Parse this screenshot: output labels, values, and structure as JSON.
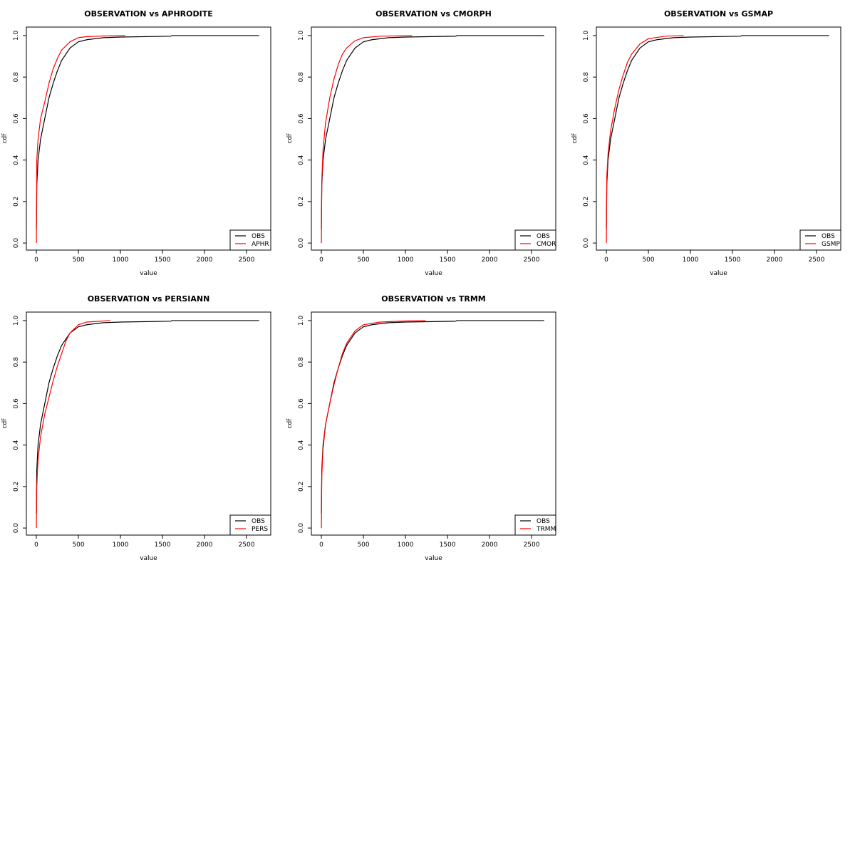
{
  "chart_data": [
    {
      "type": "line",
      "title": "OBSERVATION vs APHRODITE",
      "xlabel": "value",
      "ylabel": "cdf",
      "legend": "bottomright",
      "xlim": [
        -119,
        2788
      ],
      "ylim": [
        -0.034,
        1.041
      ],
      "xticks": [
        0,
        500,
        1000,
        1500,
        2000,
        2500
      ],
      "yticks": [
        {
          "value": 0,
          "label": "0.0"
        },
        0.2,
        0.4,
        0.6,
        0.8,
        {
          "value": 1,
          "label": "1.0"
        }
      ],
      "series": [
        {
          "name": "OBS",
          "color": "#000000",
          "x": [
            0,
            5,
            20,
            50,
            100,
            150,
            200,
            250,
            300,
            400,
            500,
            600,
            800,
            1000,
            1600,
            1610,
            2650
          ],
          "values": [
            0.07,
            0.28,
            0.4,
            0.5,
            0.6,
            0.7,
            0.77,
            0.83,
            0.88,
            0.94,
            0.97,
            0.98,
            0.99,
            0.993,
            0.997,
            1,
            1
          ]
        },
        {
          "name": "APHR",
          "color": "#ff0000",
          "x": [
            0,
            5,
            20,
            50,
            100,
            150,
            200,
            250,
            300,
            400,
            500,
            600,
            800,
            1060
          ],
          "values": [
            0,
            0.4,
            0.5,
            0.6,
            0.68,
            0.77,
            0.84,
            0.89,
            0.93,
            0.97,
            0.99,
            0.995,
            0.998,
            1
          ]
        }
      ]
    },
    {
      "type": "line",
      "title": "OBSERVATION vs CMORPH",
      "xlabel": "value",
      "ylabel": "cdf",
      "legend": "bottomright",
      "xlim": [
        -119,
        2788
      ],
      "ylim": [
        -0.034,
        1.041
      ],
      "xticks": [
        0,
        500,
        1000,
        1500,
        2000,
        2500
      ],
      "yticks": [
        {
          "value": 0,
          "label": "0.0"
        },
        0.2,
        0.4,
        0.6,
        0.8,
        {
          "value": 1,
          "label": "1.0"
        }
      ],
      "series": [
        {
          "name": "OBS",
          "color": "#000000",
          "x": [
            0,
            5,
            20,
            50,
            100,
            150,
            200,
            250,
            300,
            400,
            500,
            600,
            800,
            1000,
            1600,
            1610,
            2650
          ],
          "values": [
            0.07,
            0.28,
            0.4,
            0.5,
            0.6,
            0.7,
            0.77,
            0.83,
            0.88,
            0.94,
            0.97,
            0.98,
            0.99,
            0.993,
            0.997,
            1,
            1
          ]
        },
        {
          "name": "CMOR",
          "color": "#ff0000",
          "x": [
            0,
            5,
            20,
            50,
            100,
            150,
            200,
            250,
            300,
            400,
            500,
            700,
            1080
          ],
          "values": [
            0,
            0.3,
            0.45,
            0.58,
            0.7,
            0.79,
            0.86,
            0.91,
            0.94,
            0.975,
            0.99,
            0.997,
            1
          ]
        }
      ]
    },
    {
      "type": "line",
      "title": "OBSERVATION vs GSMAP",
      "xlabel": "value",
      "ylabel": "cdf",
      "legend": "bottomright",
      "xlim": [
        -119,
        2788
      ],
      "ylim": [
        -0.034,
        1.041
      ],
      "xticks": [
        0,
        500,
        1000,
        1500,
        2000,
        2500
      ],
      "yticks": [
        {
          "value": 0,
          "label": "0.0"
        },
        0.2,
        0.4,
        0.6,
        0.8,
        {
          "value": 1,
          "label": "1.0"
        }
      ],
      "series": [
        {
          "name": "OBS",
          "color": "#000000",
          "x": [
            0,
            5,
            20,
            50,
            100,
            150,
            200,
            250,
            300,
            400,
            500,
            600,
            800,
            1000,
            1600,
            1610,
            2650
          ],
          "values": [
            0.07,
            0.28,
            0.4,
            0.5,
            0.6,
            0.7,
            0.77,
            0.83,
            0.88,
            0.94,
            0.97,
            0.98,
            0.99,
            0.993,
            0.997,
            1,
            1
          ]
        },
        {
          "name": "GSMP",
          "color": "#ff0000",
          "x": [
            0,
            5,
            20,
            50,
            100,
            150,
            200,
            250,
            300,
            400,
            500,
            700,
            920
          ],
          "values": [
            0,
            0.32,
            0.43,
            0.54,
            0.65,
            0.74,
            0.81,
            0.87,
            0.91,
            0.96,
            0.985,
            0.997,
            1
          ]
        }
      ]
    },
    {
      "type": "line",
      "title": "OBSERVATION vs PERSIANN",
      "xlabel": "value",
      "ylabel": "cdf",
      "legend": "bottomright",
      "xlim": [
        -119,
        2788
      ],
      "ylim": [
        -0.034,
        1.041
      ],
      "xticks": [
        0,
        500,
        1000,
        1500,
        2000,
        2500
      ],
      "yticks": [
        {
          "value": 0,
          "label": "0.0"
        },
        0.2,
        0.4,
        0.6,
        0.8,
        {
          "value": 1,
          "label": "1.0"
        }
      ],
      "series": [
        {
          "name": "OBS",
          "color": "#000000",
          "x": [
            0,
            5,
            20,
            50,
            100,
            150,
            200,
            250,
            300,
            400,
            500,
            600,
            800,
            1000,
            1600,
            1610,
            2650
          ],
          "values": [
            0.07,
            0.28,
            0.4,
            0.5,
            0.6,
            0.7,
            0.77,
            0.83,
            0.88,
            0.94,
            0.97,
            0.98,
            0.99,
            0.993,
            0.997,
            1,
            1
          ]
        },
        {
          "name": "PERS",
          "color": "#ff0000",
          "x": [
            0,
            5,
            20,
            50,
            100,
            150,
            200,
            250,
            300,
            350,
            400,
            500,
            600,
            880
          ],
          "values": [
            0,
            0.2,
            0.33,
            0.44,
            0.55,
            0.63,
            0.71,
            0.78,
            0.84,
            0.9,
            0.94,
            0.98,
            0.993,
            1
          ]
        }
      ]
    },
    {
      "type": "line",
      "title": "OBSERVATION vs TRMM",
      "xlabel": "value",
      "ylabel": "cdf",
      "legend": "bottomright",
      "xlim": [
        -119,
        2788
      ],
      "ylim": [
        -0.034,
        1.041
      ],
      "xticks": [
        0,
        500,
        1000,
        1500,
        2000,
        2500
      ],
      "yticks": [
        {
          "value": 0,
          "label": "0.0"
        },
        0.2,
        0.4,
        0.6,
        0.8,
        {
          "value": 1,
          "label": "1.0"
        }
      ],
      "series": [
        {
          "name": "OBS",
          "color": "#000000",
          "x": [
            0,
            5,
            20,
            50,
            100,
            150,
            200,
            250,
            300,
            400,
            500,
            600,
            800,
            1000,
            1600,
            1610,
            2650
          ],
          "values": [
            0.07,
            0.28,
            0.4,
            0.5,
            0.6,
            0.7,
            0.77,
            0.83,
            0.88,
            0.94,
            0.97,
            0.98,
            0.99,
            0.993,
            0.997,
            1,
            1
          ]
        },
        {
          "name": "TRMM",
          "color": "#ff0000",
          "x": [
            0,
            5,
            20,
            50,
            100,
            150,
            200,
            250,
            300,
            400,
            500,
            700,
            1000,
            1240
          ],
          "values": [
            0,
            0.25,
            0.38,
            0.5,
            0.6,
            0.69,
            0.77,
            0.84,
            0.89,
            0.95,
            0.98,
            0.993,
            0.998,
            1
          ]
        }
      ]
    }
  ]
}
